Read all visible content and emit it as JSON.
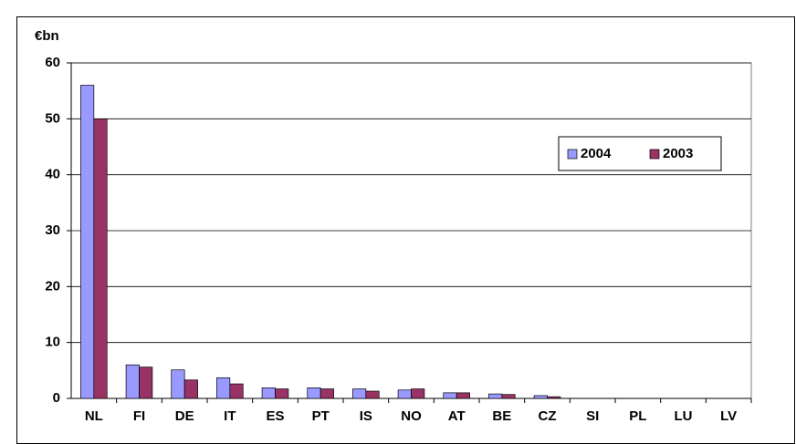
{
  "chart_data": {
    "type": "bar",
    "y_label": "€bn",
    "categories": [
      "NL",
      "FI",
      "DE",
      "IT",
      "ES",
      "PT",
      "IS",
      "NO",
      "AT",
      "BE",
      "CZ",
      "SI",
      "PL",
      "LU",
      "LV"
    ],
    "series": [
      {
        "name": "2004",
        "color": "#9999ff",
        "values": [
          56,
          6.0,
          5.1,
          3.7,
          1.9,
          1.9,
          1.7,
          1.5,
          1.0,
          0.8,
          0.5,
          0,
          0,
          0,
          0
        ]
      },
      {
        "name": "2003",
        "color": "#993366",
        "values": [
          50,
          5.6,
          3.3,
          2.6,
          1.7,
          1.7,
          1.3,
          1.7,
          1.0,
          0.7,
          0.3,
          0,
          0,
          0,
          0
        ]
      }
    ],
    "ylim": [
      0,
      60
    ],
    "yticks": [
      0,
      10,
      20,
      30,
      40,
      50,
      60
    ],
    "grid": true
  }
}
